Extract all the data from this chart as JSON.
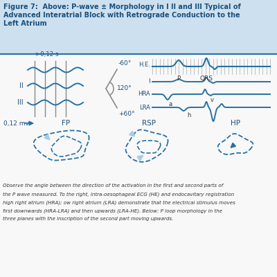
{
  "title_line1": "Figure 7:  Above: P-wave ± Morphology in I II and III Typical of",
  "title_line2": "Advanced Interatrial Block with Retrograde Conduction to the",
  "title_line3": "Left Atrium",
  "blue_dark": "#1a4f7a",
  "blue_mid": "#2471a3",
  "blue_light": "#a9cce3",
  "header_bg": "#cce0f0",
  "separator_color": "#2471a3",
  "gray": "#888888",
  "caption_lines": [
    "Observe the angle between the direction of the activation in the first and second parts of",
    "the P wave measured. To the right, intra-oesophageal ECG (HE) and endocavitary registration",
    "high right atrium (HRA); ow right atrium (LRA) demonstrate that the electrical stimulus moves",
    "first downwards (HRA-LRA) and then upwards (LRA-HE). Below: P loop morphology in the",
    "three planes with the inscription of the second part moving upwards."
  ]
}
